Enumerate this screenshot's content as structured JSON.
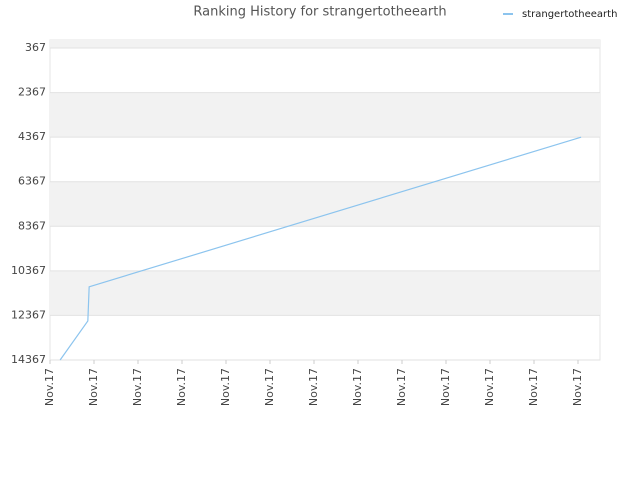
{
  "chart_data": {
    "type": "line",
    "title": "Ranking History for strangertotheearth",
    "x": [
      0.23,
      0.86,
      0.89,
      12.07
    ],
    "series": [
      {
        "name": "strangertotheearth",
        "color": "#8cc4ee",
        "values": [
          14367,
          12613,
          11083,
          4367
        ]
      }
    ],
    "xlim": [
      0,
      12.5
    ],
    "xticks": [
      {
        "value": 0,
        "label": "Nov.17"
      },
      {
        "value": 1,
        "label": "Nov.17"
      },
      {
        "value": 2,
        "label": "Nov.17"
      },
      {
        "value": 3,
        "label": "Nov.17"
      },
      {
        "value": 4,
        "label": "Nov.17"
      },
      {
        "value": 5,
        "label": "Nov.17"
      },
      {
        "value": 6,
        "label": "Nov.17"
      },
      {
        "value": 7,
        "label": "Nov.17"
      },
      {
        "value": 8,
        "label": "Nov.17"
      },
      {
        "value": 9,
        "label": "Nov.17"
      },
      {
        "value": 10,
        "label": "Nov.17"
      },
      {
        "value": 11,
        "label": "Nov.17"
      },
      {
        "value": 12,
        "label": "Nov.17"
      }
    ],
    "ylim": [
      14367,
      7
    ],
    "yticks": [
      367,
      2367,
      4367,
      6367,
      8367,
      10367,
      12367,
      14367
    ],
    "grid": true,
    "legend": "top-right"
  }
}
